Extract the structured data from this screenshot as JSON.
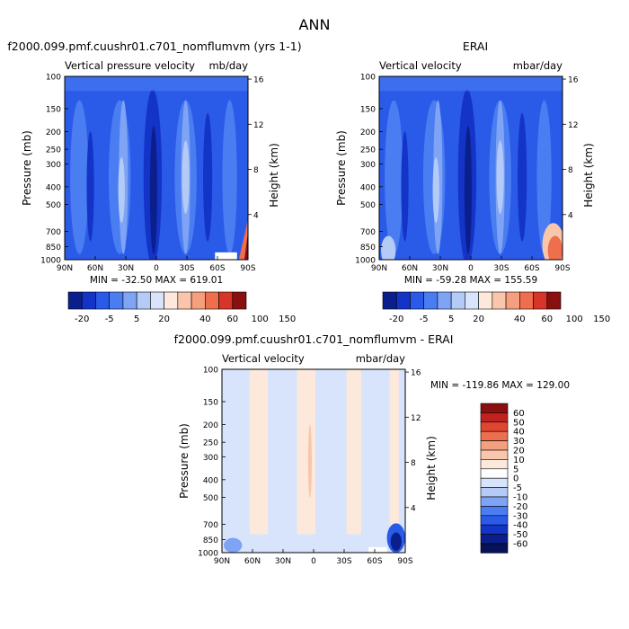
{
  "page_title": "ANN",
  "panels": [
    {
      "title_left": "f2000.099.pmf.cuushr01.c701_nomflumvm (yrs 1-1)",
      "title_right": "",
      "subtitle_left": "Vertical pressure velocity",
      "subtitle_right": "mb/day",
      "stats": "MIN = -32.50   MAX = 619.01"
    },
    {
      "title_left": "",
      "title_right": "ERAI",
      "subtitle_left": "Vertical velocity",
      "subtitle_right": "mbar/day",
      "stats": "MIN = -59.28   MAX = 155.59"
    },
    {
      "title_left": "",
      "title_right": "f2000.099.pmf.cuushr01.c701_nomflumvm - ERAI",
      "subtitle_left": "Vertical velocity",
      "subtitle_right": "mbar/day",
      "stats": "MIN = -119.86   MAX = 129.00"
    }
  ],
  "axes": {
    "ylabel_left": "Pressure (mb)",
    "ylabel_right": "Height (km)",
    "pressure_ticks": [
      100,
      150,
      200,
      250,
      300,
      400,
      500,
      700,
      850,
      1000
    ],
    "height_ticks": [
      4,
      8,
      12,
      16
    ],
    "lat_ticks": [
      "90N",
      "60N",
      "30N",
      "0",
      "30S",
      "60S",
      "90S"
    ]
  },
  "colors": {
    "navy": "#0b1f8c",
    "deep_blue": "#1434c8",
    "mid_blue": "#2a5ae8",
    "blue": "#4a7cf2",
    "light_blue": "#7fa3f5",
    "pale_blue": "#b4cbf7",
    "very_pale_blue": "#d7e4fb",
    "cream": "#fde9dc",
    "pale_red": "#f9c6ac",
    "light_red": "#f4a07e",
    "red": "#ee6e4d",
    "deep_red": "#d8352a",
    "dark_red": "#8a0f0f"
  },
  "chart_data": [
    {
      "type": "heatmap",
      "title": "f2000.099.pmf.cuushr01.c701_nomflumvm (yrs 1-1)",
      "x_ticks": [
        "90N",
        "60N",
        "30N",
        "0",
        "30S",
        "60S",
        "90S"
      ],
      "y_range_mb": [
        1000,
        100
      ],
      "height_range_km": [
        0,
        16
      ],
      "legend_labels": [
        "-20",
        "-5",
        "5",
        "20",
        "40",
        "60",
        "100",
        "150"
      ],
      "legend_colors": [
        "#0b1f8c",
        "#1434c8",
        "#2a5ae8",
        "#4a7cf2",
        "#7fa3f5",
        "#b4cbf7",
        "#d7e4fb",
        "#fde9dc",
        "#f9c6ac",
        "#f4a07e",
        "#ee6e4d",
        "#d8352a",
        "#8a0f0f"
      ],
      "min": -32.5,
      "max": 619.01
    },
    {
      "type": "heatmap",
      "title": "ERAI",
      "x_ticks": [
        "90N",
        "60N",
        "30N",
        "0",
        "30S",
        "60S",
        "90S"
      ],
      "y_range_mb": [
        1000,
        100
      ],
      "height_range_km": [
        0,
        16
      ],
      "legend_labels": [
        "-20",
        "-5",
        "5",
        "20",
        "40",
        "60",
        "100",
        "150"
      ],
      "legend_colors": [
        "#0b1f8c",
        "#1434c8",
        "#2a5ae8",
        "#4a7cf2",
        "#7fa3f5",
        "#b4cbf7",
        "#d7e4fb",
        "#fde9dc",
        "#f9c6ac",
        "#f4a07e",
        "#ee6e4d",
        "#d8352a",
        "#8a0f0f"
      ],
      "min": -59.28,
      "max": 155.59
    },
    {
      "type": "heatmap",
      "title": "f2000.099.pmf.cuushr01.c701_nomflumvm - ERAI",
      "x_ticks": [
        "90N",
        "60N",
        "30N",
        "0",
        "30S",
        "60S",
        "90S"
      ],
      "y_range_mb": [
        1000,
        100
      ],
      "height_range_km": [
        0,
        16
      ],
      "legend_labels": [
        "60",
        "50",
        "40",
        "30",
        "20",
        "10",
        "5",
        "0",
        "-5",
        "-10",
        "-20",
        "-30",
        "-40",
        "-50",
        "-60"
      ],
      "legend_colors": [
        "#8a0f0f",
        "#c0231f",
        "#e0452f",
        "#ee6e4d",
        "#f4a07e",
        "#f9c6ac",
        "#fde9dc",
        "#ffffff",
        "#d7e4fb",
        "#b4cbf7",
        "#7fa3f5",
        "#4a7cf2",
        "#2a5ae8",
        "#1434c8",
        "#0b1f8c",
        "#06125a"
      ],
      "min": -119.86,
      "max": 129.0
    }
  ]
}
